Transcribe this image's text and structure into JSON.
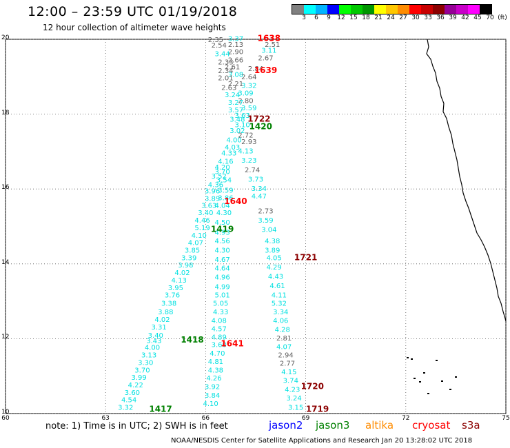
{
  "title": "12:00 – 23:59 UTC 01/19/2018",
  "subtitle": "12 hour collection of altimeter wave heights",
  "colorbar": {
    "colors": [
      "#808080",
      "#00ffff",
      "#00b4ff",
      "#0000ff",
      "#00ff00",
      "#00c800",
      "#009600",
      "#ffff00",
      "#ffc800",
      "#ff8c00",
      "#ff0000",
      "#c80000",
      "#8c0000",
      "#960096",
      "#c800c8",
      "#ff00ff",
      "#000000"
    ],
    "labels": [
      "3",
      "6",
      "9",
      "12",
      "15",
      "18",
      "21",
      "24",
      "27",
      "30",
      "33",
      "36",
      "39",
      "42",
      "45",
      "70",
      "(ft)"
    ]
  },
  "axes": {
    "y_ticks": [
      "20",
      "18",
      "16",
      "14",
      "12",
      "10"
    ],
    "x_ticks": [
      "60",
      "63",
      "66",
      "69",
      "72",
      "75"
    ],
    "lon_range": [
      60,
      75
    ],
    "lat_range": [
      10,
      20
    ]
  },
  "note": "note: 1) Time is in UTC; 2) SWH is in feet",
  "legend": [
    {
      "name": "jason2",
      "color": "#0000ff"
    },
    {
      "name": "jason3",
      "color": "#008000"
    },
    {
      "name": "altika",
      "color": "#ff8c00"
    },
    {
      "name": "cryosat",
      "color": "#ff0000"
    },
    {
      "name": "s3a",
      "color": "#8c0000"
    }
  ],
  "footer": "NOAA/NESDIS Center for Satellite Applications and Research    Jan 20 13:28:02 UTC 2018",
  "time_labels": [
    {
      "text": "1638",
      "lon": 67.9,
      "lat": 19.95,
      "color": "#ff0000"
    },
    {
      "text": "1639",
      "lon": 67.8,
      "lat": 19.1,
      "color": "#ff0000"
    },
    {
      "text": "1722",
      "lon": 67.6,
      "lat": 17.8,
      "color": "#8c0000"
    },
    {
      "text": "1420",
      "lon": 67.65,
      "lat": 17.6,
      "color": "#008000"
    },
    {
      "text": "1640",
      "lon": 66.9,
      "lat": 15.6,
      "color": "#ff0000"
    },
    {
      "text": "1419",
      "lon": 66.5,
      "lat": 14.85,
      "color": "#008000"
    },
    {
      "text": "1721",
      "lon": 69.0,
      "lat": 14.1,
      "color": "#8c0000"
    },
    {
      "text": "1418",
      "lon": 65.6,
      "lat": 11.9,
      "color": "#008000"
    },
    {
      "text": "1641",
      "lon": 66.8,
      "lat": 11.8,
      "color": "#ff0000"
    },
    {
      "text": "1720",
      "lon": 69.2,
      "lat": 10.65,
      "color": "#8c0000"
    },
    {
      "text": "1417",
      "lon": 64.65,
      "lat": 10.05,
      "color": "#008000"
    },
    {
      "text": "1719",
      "lon": 69.35,
      "lat": 10.05,
      "color": "#8c0000"
    }
  ],
  "wave_values": [
    {
      "v": "3.37",
      "lon": 66.9,
      "lat": 19.95,
      "c": "#00e0e0"
    },
    {
      "v": "2.35",
      "lon": 66.3,
      "lat": 19.93,
      "c": "#606060"
    },
    {
      "v": "2.51",
      "lon": 68.0,
      "lat": 19.8,
      "c": "#606060"
    },
    {
      "v": "2.13",
      "lon": 66.9,
      "lat": 19.8,
      "c": "#606060"
    },
    {
      "v": "2.54",
      "lon": 66.4,
      "lat": 19.78,
      "c": "#606060"
    },
    {
      "v": "3.11",
      "lon": 67.9,
      "lat": 19.64,
      "c": "#00e0e0"
    },
    {
      "v": "2.90",
      "lon": 66.9,
      "lat": 19.6,
      "c": "#606060"
    },
    {
      "v": "3.44",
      "lon": 66.5,
      "lat": 19.55,
      "c": "#00e0e0"
    },
    {
      "v": "2.67",
      "lon": 67.8,
      "lat": 19.44,
      "c": "#606060"
    },
    {
      "v": "2.66",
      "lon": 66.9,
      "lat": 19.38,
      "c": "#606060"
    },
    {
      "v": "2.33",
      "lon": 66.6,
      "lat": 19.33,
      "c": "#606060"
    },
    {
      "v": "2.61",
      "lon": 66.8,
      "lat": 19.2,
      "c": "#606060"
    },
    {
      "v": "2.84",
      "lon": 67.5,
      "lat": 19.15,
      "c": "#606060"
    },
    {
      "v": "2.34",
      "lon": 66.6,
      "lat": 19.1,
      "c": "#606060"
    },
    {
      "v": "3.08",
      "lon": 66.9,
      "lat": 19.0,
      "c": "#00e0e0"
    },
    {
      "v": "2.64",
      "lon": 67.3,
      "lat": 18.93,
      "c": "#606060"
    },
    {
      "v": "2.01",
      "lon": 66.6,
      "lat": 18.9,
      "c": "#606060"
    },
    {
      "v": "2.21",
      "lon": 66.9,
      "lat": 18.75,
      "c": "#606060"
    },
    {
      "v": "3.32",
      "lon": 67.3,
      "lat": 18.7,
      "c": "#00e0e0"
    },
    {
      "v": "2.63",
      "lon": 66.7,
      "lat": 18.65,
      "c": "#606060"
    },
    {
      "v": "3.09",
      "lon": 67.2,
      "lat": 18.5,
      "c": "#00e0e0"
    },
    {
      "v": "3.24",
      "lon": 66.8,
      "lat": 18.45,
      "c": "#00e0e0"
    },
    {
      "v": "2.80",
      "lon": 67.2,
      "lat": 18.3,
      "c": "#606060"
    },
    {
      "v": "3.27",
      "lon": 66.9,
      "lat": 18.25,
      "c": "#00e0e0"
    },
    {
      "v": "3.59",
      "lon": 67.3,
      "lat": 18.1,
      "c": "#00e0e0"
    },
    {
      "v": "3.57",
      "lon": 66.9,
      "lat": 18.05,
      "c": "#00e0e0"
    },
    {
      "v": "3.63",
      "lon": 67.1,
      "lat": 17.9,
      "c": "#00e0e0"
    },
    {
      "v": "3.48",
      "lon": 66.95,
      "lat": 17.8,
      "c": "#00e0e0"
    },
    {
      "v": "3.10",
      "lon": 67.1,
      "lat": 17.65,
      "c": "#00e0e0"
    },
    {
      "v": "3.02",
      "lon": 66.95,
      "lat": 17.5,
      "c": "#00e0e0"
    },
    {
      "v": "2.72",
      "lon": 67.2,
      "lat": 17.38,
      "c": "#606060"
    },
    {
      "v": "4.00",
      "lon": 66.85,
      "lat": 17.25,
      "c": "#00e0e0"
    },
    {
      "v": "2.93",
      "lon": 67.3,
      "lat": 17.2,
      "c": "#606060"
    },
    {
      "v": "4.03",
      "lon": 66.8,
      "lat": 17.05,
      "c": "#00e0e0"
    },
    {
      "v": "4.13",
      "lon": 67.2,
      "lat": 16.95,
      "c": "#00e0e0"
    },
    {
      "v": "4.33",
      "lon": 66.7,
      "lat": 16.9,
      "c": "#00e0e0"
    },
    {
      "v": "3.23",
      "lon": 67.3,
      "lat": 16.7,
      "c": "#00e0e0"
    },
    {
      "v": "4.16",
      "lon": 66.6,
      "lat": 16.68,
      "c": "#00e0e0"
    },
    {
      "v": "4.20",
      "lon": 66.5,
      "lat": 16.52,
      "c": "#00e0e0"
    },
    {
      "v": "2.74",
      "lon": 67.4,
      "lat": 16.45,
      "c": "#606060"
    },
    {
      "v": "3.70",
      "lon": 66.5,
      "lat": 16.4,
      "c": "#00e0e0"
    },
    {
      "v": "3.52",
      "lon": 66.4,
      "lat": 16.28,
      "c": "#00e0e0"
    },
    {
      "v": "3.73",
      "lon": 67.5,
      "lat": 16.2,
      "c": "#00e0e0"
    },
    {
      "v": "3.54",
      "lon": 66.55,
      "lat": 16.18,
      "c": "#00e0e0"
    },
    {
      "v": "4.36",
      "lon": 66.3,
      "lat": 16.05,
      "c": "#00e0e0"
    },
    {
      "v": "3.34",
      "lon": 67.6,
      "lat": 15.95,
      "c": "#00e0e0"
    },
    {
      "v": "3.59",
      "lon": 66.6,
      "lat": 15.9,
      "c": "#00e0e0"
    },
    {
      "v": "3.96",
      "lon": 66.2,
      "lat": 15.88,
      "c": "#00e0e0"
    },
    {
      "v": "4.47",
      "lon": 67.6,
      "lat": 15.75,
      "c": "#00e0e0"
    },
    {
      "v": "3.86",
      "lon": 66.6,
      "lat": 15.7,
      "c": "#00e0e0"
    },
    {
      "v": "3.89",
      "lon": 66.2,
      "lat": 15.68,
      "c": "#00e0e0"
    },
    {
      "v": "3.63",
      "lon": 66.1,
      "lat": 15.5,
      "c": "#00e0e0"
    },
    {
      "v": "4.04",
      "lon": 66.5,
      "lat": 15.5,
      "c": "#00e0e0"
    },
    {
      "v": "3.40",
      "lon": 66.0,
      "lat": 15.3,
      "c": "#00e0e0"
    },
    {
      "v": "2.73",
      "lon": 67.8,
      "lat": 15.35,
      "c": "#606060"
    },
    {
      "v": "4.30",
      "lon": 66.55,
      "lat": 15.3,
      "c": "#00e0e0"
    },
    {
      "v": "4.46",
      "lon": 65.9,
      "lat": 15.1,
      "c": "#00e0e0"
    },
    {
      "v": "3.59",
      "lon": 67.8,
      "lat": 15.1,
      "c": "#00e0e0"
    },
    {
      "v": "4.50",
      "lon": 66.5,
      "lat": 15.05,
      "c": "#00e0e0"
    },
    {
      "v": "5.19",
      "lon": 65.9,
      "lat": 14.9,
      "c": "#00e0e0"
    },
    {
      "v": "3.04",
      "lon": 67.9,
      "lat": 14.85,
      "c": "#00e0e0"
    },
    {
      "v": "4.93",
      "lon": 66.5,
      "lat": 14.78,
      "c": "#00e0e0"
    },
    {
      "v": "4.10",
      "lon": 65.8,
      "lat": 14.7,
      "c": "#00e0e0"
    },
    {
      "v": "4.56",
      "lon": 66.5,
      "lat": 14.55,
      "c": "#00e0e0"
    },
    {
      "v": "4.38",
      "lon": 68.0,
      "lat": 14.55,
      "c": "#00e0e0"
    },
    {
      "v": "4.07",
      "lon": 65.7,
      "lat": 14.5,
      "c": "#00e0e0"
    },
    {
      "v": "4.30",
      "lon": 66.5,
      "lat": 14.3,
      "c": "#00e0e0"
    },
    {
      "v": "3.89",
      "lon": 68.0,
      "lat": 14.3,
      "c": "#00e0e0"
    },
    {
      "v": "3.85",
      "lon": 65.6,
      "lat": 14.3,
      "c": "#00e0e0"
    },
    {
      "v": "4.05",
      "lon": 68.05,
      "lat": 14.1,
      "c": "#00e0e0"
    },
    {
      "v": "3.39",
      "lon": 65.5,
      "lat": 14.1,
      "c": "#00e0e0"
    },
    {
      "v": "4.67",
      "lon": 66.5,
      "lat": 14.05,
      "c": "#00e0e0"
    },
    {
      "v": "3.98",
      "lon": 65.4,
      "lat": 13.9,
      "c": "#00e0e0"
    },
    {
      "v": "4.29",
      "lon": 68.05,
      "lat": 13.85,
      "c": "#00e0e0"
    },
    {
      "v": "4.64",
      "lon": 66.5,
      "lat": 13.82,
      "c": "#00e0e0"
    },
    {
      "v": "4.02",
      "lon": 65.3,
      "lat": 13.7,
      "c": "#00e0e0"
    },
    {
      "v": "4.43",
      "lon": 68.1,
      "lat": 13.6,
      "c": "#00e0e0"
    },
    {
      "v": "4.96",
      "lon": 66.5,
      "lat": 13.58,
      "c": "#00e0e0"
    },
    {
      "v": "4.13",
      "lon": 65.2,
      "lat": 13.5,
      "c": "#00e0e0"
    },
    {
      "v": "4.61",
      "lon": 68.15,
      "lat": 13.35,
      "c": "#00e0e0"
    },
    {
      "v": "4.99",
      "lon": 66.5,
      "lat": 13.32,
      "c": "#00e0e0"
    },
    {
      "v": "3.95",
      "lon": 65.1,
      "lat": 13.3,
      "c": "#00e0e0"
    },
    {
      "v": "5.01",
      "lon": 66.5,
      "lat": 13.1,
      "c": "#00e0e0"
    },
    {
      "v": "4.11",
      "lon": 68.2,
      "lat": 13.1,
      "c": "#00e0e0"
    },
    {
      "v": "3.76",
      "lon": 65.0,
      "lat": 13.1,
      "c": "#00e0e0"
    },
    {
      "v": "5.05",
      "lon": 66.45,
      "lat": 12.88,
      "c": "#00e0e0"
    },
    {
      "v": "5.32",
      "lon": 68.2,
      "lat": 12.88,
      "c": "#00e0e0"
    },
    {
      "v": "3.38",
      "lon": 64.9,
      "lat": 12.88,
      "c": "#00e0e0"
    },
    {
      "v": "4.33",
      "lon": 66.45,
      "lat": 12.65,
      "c": "#00e0e0"
    },
    {
      "v": "3.34",
      "lon": 68.25,
      "lat": 12.65,
      "c": "#00e0e0"
    },
    {
      "v": "3.88",
      "lon": 64.8,
      "lat": 12.65,
      "c": "#00e0e0"
    },
    {
      "v": "4.08",
      "lon": 66.4,
      "lat": 12.42,
      "c": "#00e0e0"
    },
    {
      "v": "4.06",
      "lon": 68.25,
      "lat": 12.42,
      "c": "#00e0e0"
    },
    {
      "v": "4.02",
      "lon": 64.7,
      "lat": 12.45,
      "c": "#00e0e0"
    },
    {
      "v": "4.57",
      "lon": 66.4,
      "lat": 12.2,
      "c": "#00e0e0"
    },
    {
      "v": "4.28",
      "lon": 68.3,
      "lat": 12.18,
      "c": "#00e0e0"
    },
    {
      "v": "3.31",
      "lon": 64.6,
      "lat": 12.25,
      "c": "#00e0e0"
    },
    {
      "v": "3.40",
      "lon": 64.5,
      "lat": 12.03,
      "c": "#00e0e0"
    },
    {
      "v": "4.89",
      "lon": 66.4,
      "lat": 11.98,
      "c": "#00e0e0"
    },
    {
      "v": "2.81",
      "lon": 68.35,
      "lat": 11.95,
      "c": "#606060"
    },
    {
      "v": "3.43",
      "lon": 64.45,
      "lat": 11.88,
      "c": "#00e0e0"
    },
    {
      "v": "3.60",
      "lon": 66.4,
      "lat": 11.78,
      "c": "#00e0e0"
    },
    {
      "v": "4.00",
      "lon": 64.4,
      "lat": 11.7,
      "c": "#00e0e0"
    },
    {
      "v": "4.07",
      "lon": 68.35,
      "lat": 11.72,
      "c": "#00e0e0"
    },
    {
      "v": "4.70",
      "lon": 66.35,
      "lat": 11.55,
      "c": "#00e0e0"
    },
    {
      "v": "2.94",
      "lon": 68.4,
      "lat": 11.5,
      "c": "#606060"
    },
    {
      "v": "3.13",
      "lon": 64.3,
      "lat": 11.5,
      "c": "#00e0e0"
    },
    {
      "v": "4.81",
      "lon": 66.3,
      "lat": 11.33,
      "c": "#00e0e0"
    },
    {
      "v": "3.30",
      "lon": 64.2,
      "lat": 11.3,
      "c": "#00e0e0"
    },
    {
      "v": "2.77",
      "lon": 68.45,
      "lat": 11.28,
      "c": "#606060"
    },
    {
      "v": "4.38",
      "lon": 66.3,
      "lat": 11.1,
      "c": "#00e0e0"
    },
    {
      "v": "3.70",
      "lon": 64.1,
      "lat": 11.1,
      "c": "#00e0e0"
    },
    {
      "v": "4.15",
      "lon": 68.5,
      "lat": 11.05,
      "c": "#00e0e0"
    },
    {
      "v": "4.26",
      "lon": 66.25,
      "lat": 10.88,
      "c": "#00e0e0"
    },
    {
      "v": "3.99",
      "lon": 64.0,
      "lat": 10.9,
      "c": "#00e0e0"
    },
    {
      "v": "3.74",
      "lon": 68.55,
      "lat": 10.82,
      "c": "#00e0e0"
    },
    {
      "v": "3.92",
      "lon": 66.2,
      "lat": 10.65,
      "c": "#00e0e0"
    },
    {
      "v": "4.22",
      "lon": 63.9,
      "lat": 10.7,
      "c": "#00e0e0"
    },
    {
      "v": "4.23",
      "lon": 68.6,
      "lat": 10.58,
      "c": "#00e0e0"
    },
    {
      "v": "3.84",
      "lon": 66.2,
      "lat": 10.42,
      "c": "#00e0e0"
    },
    {
      "v": "3.60",
      "lon": 63.8,
      "lat": 10.5,
      "c": "#00e0e0"
    },
    {
      "v": "3.24",
      "lon": 68.65,
      "lat": 10.35,
      "c": "#00e0e0"
    },
    {
      "v": "4.54",
      "lon": 63.7,
      "lat": 10.3,
      "c": "#00e0e0"
    },
    {
      "v": "4.10",
      "lon": 66.15,
      "lat": 10.2,
      "c": "#00e0e0"
    },
    {
      "v": "3.15",
      "lon": 68.7,
      "lat": 10.1,
      "c": "#00e0e0"
    },
    {
      "v": "3.32",
      "lon": 63.6,
      "lat": 10.1,
      "c": "#00e0e0"
    }
  ]
}
